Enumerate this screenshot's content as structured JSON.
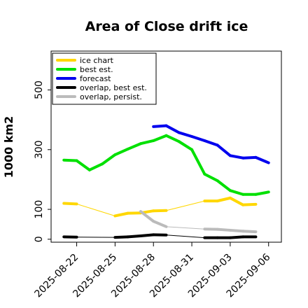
{
  "chart_data": {
    "type": "line",
    "title": "Area of Close drift ice",
    "ylabel": "1000 km2",
    "xlabel": "",
    "ylim": [
      -10,
      630
    ],
    "xlim": [
      "2025-08-20",
      "2025-09-07"
    ],
    "yticks": [
      0,
      100,
      300,
      500
    ],
    "xticks": [
      {
        "date": "2025-08-22",
        "label": "2025-08-22",
        "color": "#000000"
      },
      {
        "date": "2025-08-25",
        "label": "2025-08-25",
        "color": "#000000"
      },
      {
        "date": "2025-08-28",
        "label": "2025-08-28",
        "color": "#228B22"
      },
      {
        "date": "2025-08-31",
        "label": "2025-08-31",
        "color": "#000000"
      },
      {
        "date": "2025-09-03",
        "label": "2025-09-03",
        "color": "#000000"
      },
      {
        "date": "2025-09-06",
        "label": "2025-09-06",
        "color": "#000000"
      }
    ],
    "legend_position": "top-left",
    "grid": false,
    "series": [
      {
        "name": "ice chart",
        "color": "#FFD700",
        "points": [
          {
            "x": "2025-08-21",
            "y": 120
          },
          {
            "x": "2025-08-22",
            "y": 118
          },
          {
            "x": "2025-08-25",
            "y": 78
          },
          {
            "x": "2025-08-26",
            "y": 87
          },
          {
            "x": "2025-08-27",
            "y": 88
          },
          {
            "x": "2025-08-28",
            "y": 95
          },
          {
            "x": "2025-08-29",
            "y": 96
          },
          {
            "x": "2025-09-01",
            "y": 128
          },
          {
            "x": "2025-09-02",
            "y": 128
          },
          {
            "x": "2025-09-03",
            "y": 138
          },
          {
            "x": "2025-09-04",
            "y": 115
          },
          {
            "x": "2025-09-05",
            "y": 117
          }
        ]
      },
      {
        "name": "best est.",
        "color": "#00E000",
        "points": [
          {
            "x": "2025-08-21",
            "y": 265
          },
          {
            "x": "2025-08-22",
            "y": 263
          },
          {
            "x": "2025-08-23",
            "y": 232
          },
          {
            "x": "2025-08-24",
            "y": 252
          },
          {
            "x": "2025-08-25",
            "y": 283
          },
          {
            "x": "2025-08-26",
            "y": 302
          },
          {
            "x": "2025-08-27",
            "y": 320
          },
          {
            "x": "2025-08-28",
            "y": 330
          },
          {
            "x": "2025-08-29",
            "y": 347
          },
          {
            "x": "2025-08-30",
            "y": 327
          },
          {
            "x": "2025-08-31",
            "y": 300
          },
          {
            "x": "2025-09-01",
            "y": 218
          },
          {
            "x": "2025-09-02",
            "y": 196
          },
          {
            "x": "2025-09-03",
            "y": 163
          },
          {
            "x": "2025-09-04",
            "y": 150
          },
          {
            "x": "2025-09-05",
            "y": 150
          },
          {
            "x": "2025-09-06",
            "y": 158
          }
        ]
      },
      {
        "name": "forecast",
        "color": "#0000EE",
        "points": [
          {
            "x": "2025-08-28",
            "y": 377
          },
          {
            "x": "2025-08-29",
            "y": 380
          },
          {
            "x": "2025-08-30",
            "y": 357
          },
          {
            "x": "2025-08-31",
            "y": 344
          },
          {
            "x": "2025-09-01",
            "y": 330
          },
          {
            "x": "2025-09-02",
            "y": 315
          },
          {
            "x": "2025-09-03",
            "y": 280
          },
          {
            "x": "2025-09-04",
            "y": 272
          },
          {
            "x": "2025-09-05",
            "y": 274
          },
          {
            "x": "2025-09-06",
            "y": 256
          }
        ]
      },
      {
        "name": "overlap, best est.",
        "color": "#000000",
        "points": [
          {
            "x": "2025-08-21",
            "y": 8
          },
          {
            "x": "2025-08-22",
            "y": 7
          },
          {
            "x": "2025-08-25",
            "y": 6
          },
          {
            "x": "2025-08-26",
            "y": 8
          },
          {
            "x": "2025-08-27",
            "y": 11
          },
          {
            "x": "2025-08-28",
            "y": 15
          },
          {
            "x": "2025-08-29",
            "y": 14
          },
          {
            "x": "2025-09-01",
            "y": 5
          },
          {
            "x": "2025-09-02",
            "y": 5
          },
          {
            "x": "2025-09-03",
            "y": 5
          },
          {
            "x": "2025-09-04",
            "y": 8
          },
          {
            "x": "2025-09-05",
            "y": 8
          }
        ]
      },
      {
        "name": "overlap, persist.",
        "color": "#BBBBBB",
        "points": [
          {
            "x": "2025-08-27",
            "y": 93
          },
          {
            "x": "2025-08-28",
            "y": 60
          },
          {
            "x": "2025-08-29",
            "y": 42
          },
          {
            "x": "2025-09-01",
            "y": 34
          },
          {
            "x": "2025-09-02",
            "y": 33
          },
          {
            "x": "2025-09-03",
            "y": 30
          },
          {
            "x": "2025-09-04",
            "y": 27
          },
          {
            "x": "2025-09-05",
            "y": 25
          }
        ]
      }
    ]
  }
}
